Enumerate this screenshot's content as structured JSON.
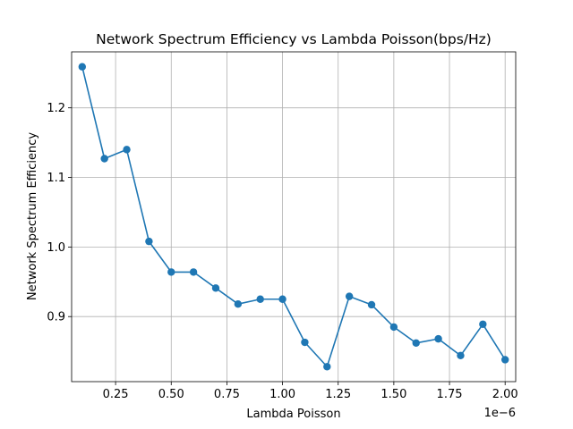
{
  "chart_data": {
    "type": "line",
    "title": "Network Spectrum Efficiency vs Lambda Poisson(bps/Hz)",
    "xlabel": "Lambda Poisson",
    "ylabel": "Network Spectrum Efficiency",
    "x_offset_label": "1e−6",
    "x_multiplier": 1e-06,
    "xlim": [
      0.0525,
      2.0475
    ],
    "ylim": [
      0.8065,
      1.2805
    ],
    "x_ticks": [
      0.25,
      0.5,
      0.75,
      1.0,
      1.25,
      1.5,
      1.75,
      2.0
    ],
    "x_tick_labels": [
      "0.25",
      "0.50",
      "0.75",
      "1.00",
      "1.25",
      "1.50",
      "1.75",
      "2.00"
    ],
    "y_ticks": [
      0.9,
      1.0,
      1.1,
      1.2
    ],
    "y_tick_labels": [
      "0.9",
      "1.0",
      "1.1",
      "1.2"
    ],
    "grid": true,
    "color": "#1f77b4",
    "marker": "circle",
    "series": [
      {
        "x": [
          0.1,
          0.2,
          0.3,
          0.4,
          0.5,
          0.6,
          0.7,
          0.8,
          0.9,
          1.0,
          1.1,
          1.2,
          1.3,
          1.4,
          1.5,
          1.6,
          1.7,
          1.8,
          1.9,
          2.0
        ],
        "y": [
          1.259,
          1.127,
          1.14,
          1.008,
          0.964,
          0.964,
          0.941,
          0.918,
          0.925,
          0.925,
          0.863,
          0.828,
          0.929,
          0.917,
          0.885,
          0.862,
          0.868,
          0.844,
          0.889,
          0.838
        ]
      }
    ]
  }
}
